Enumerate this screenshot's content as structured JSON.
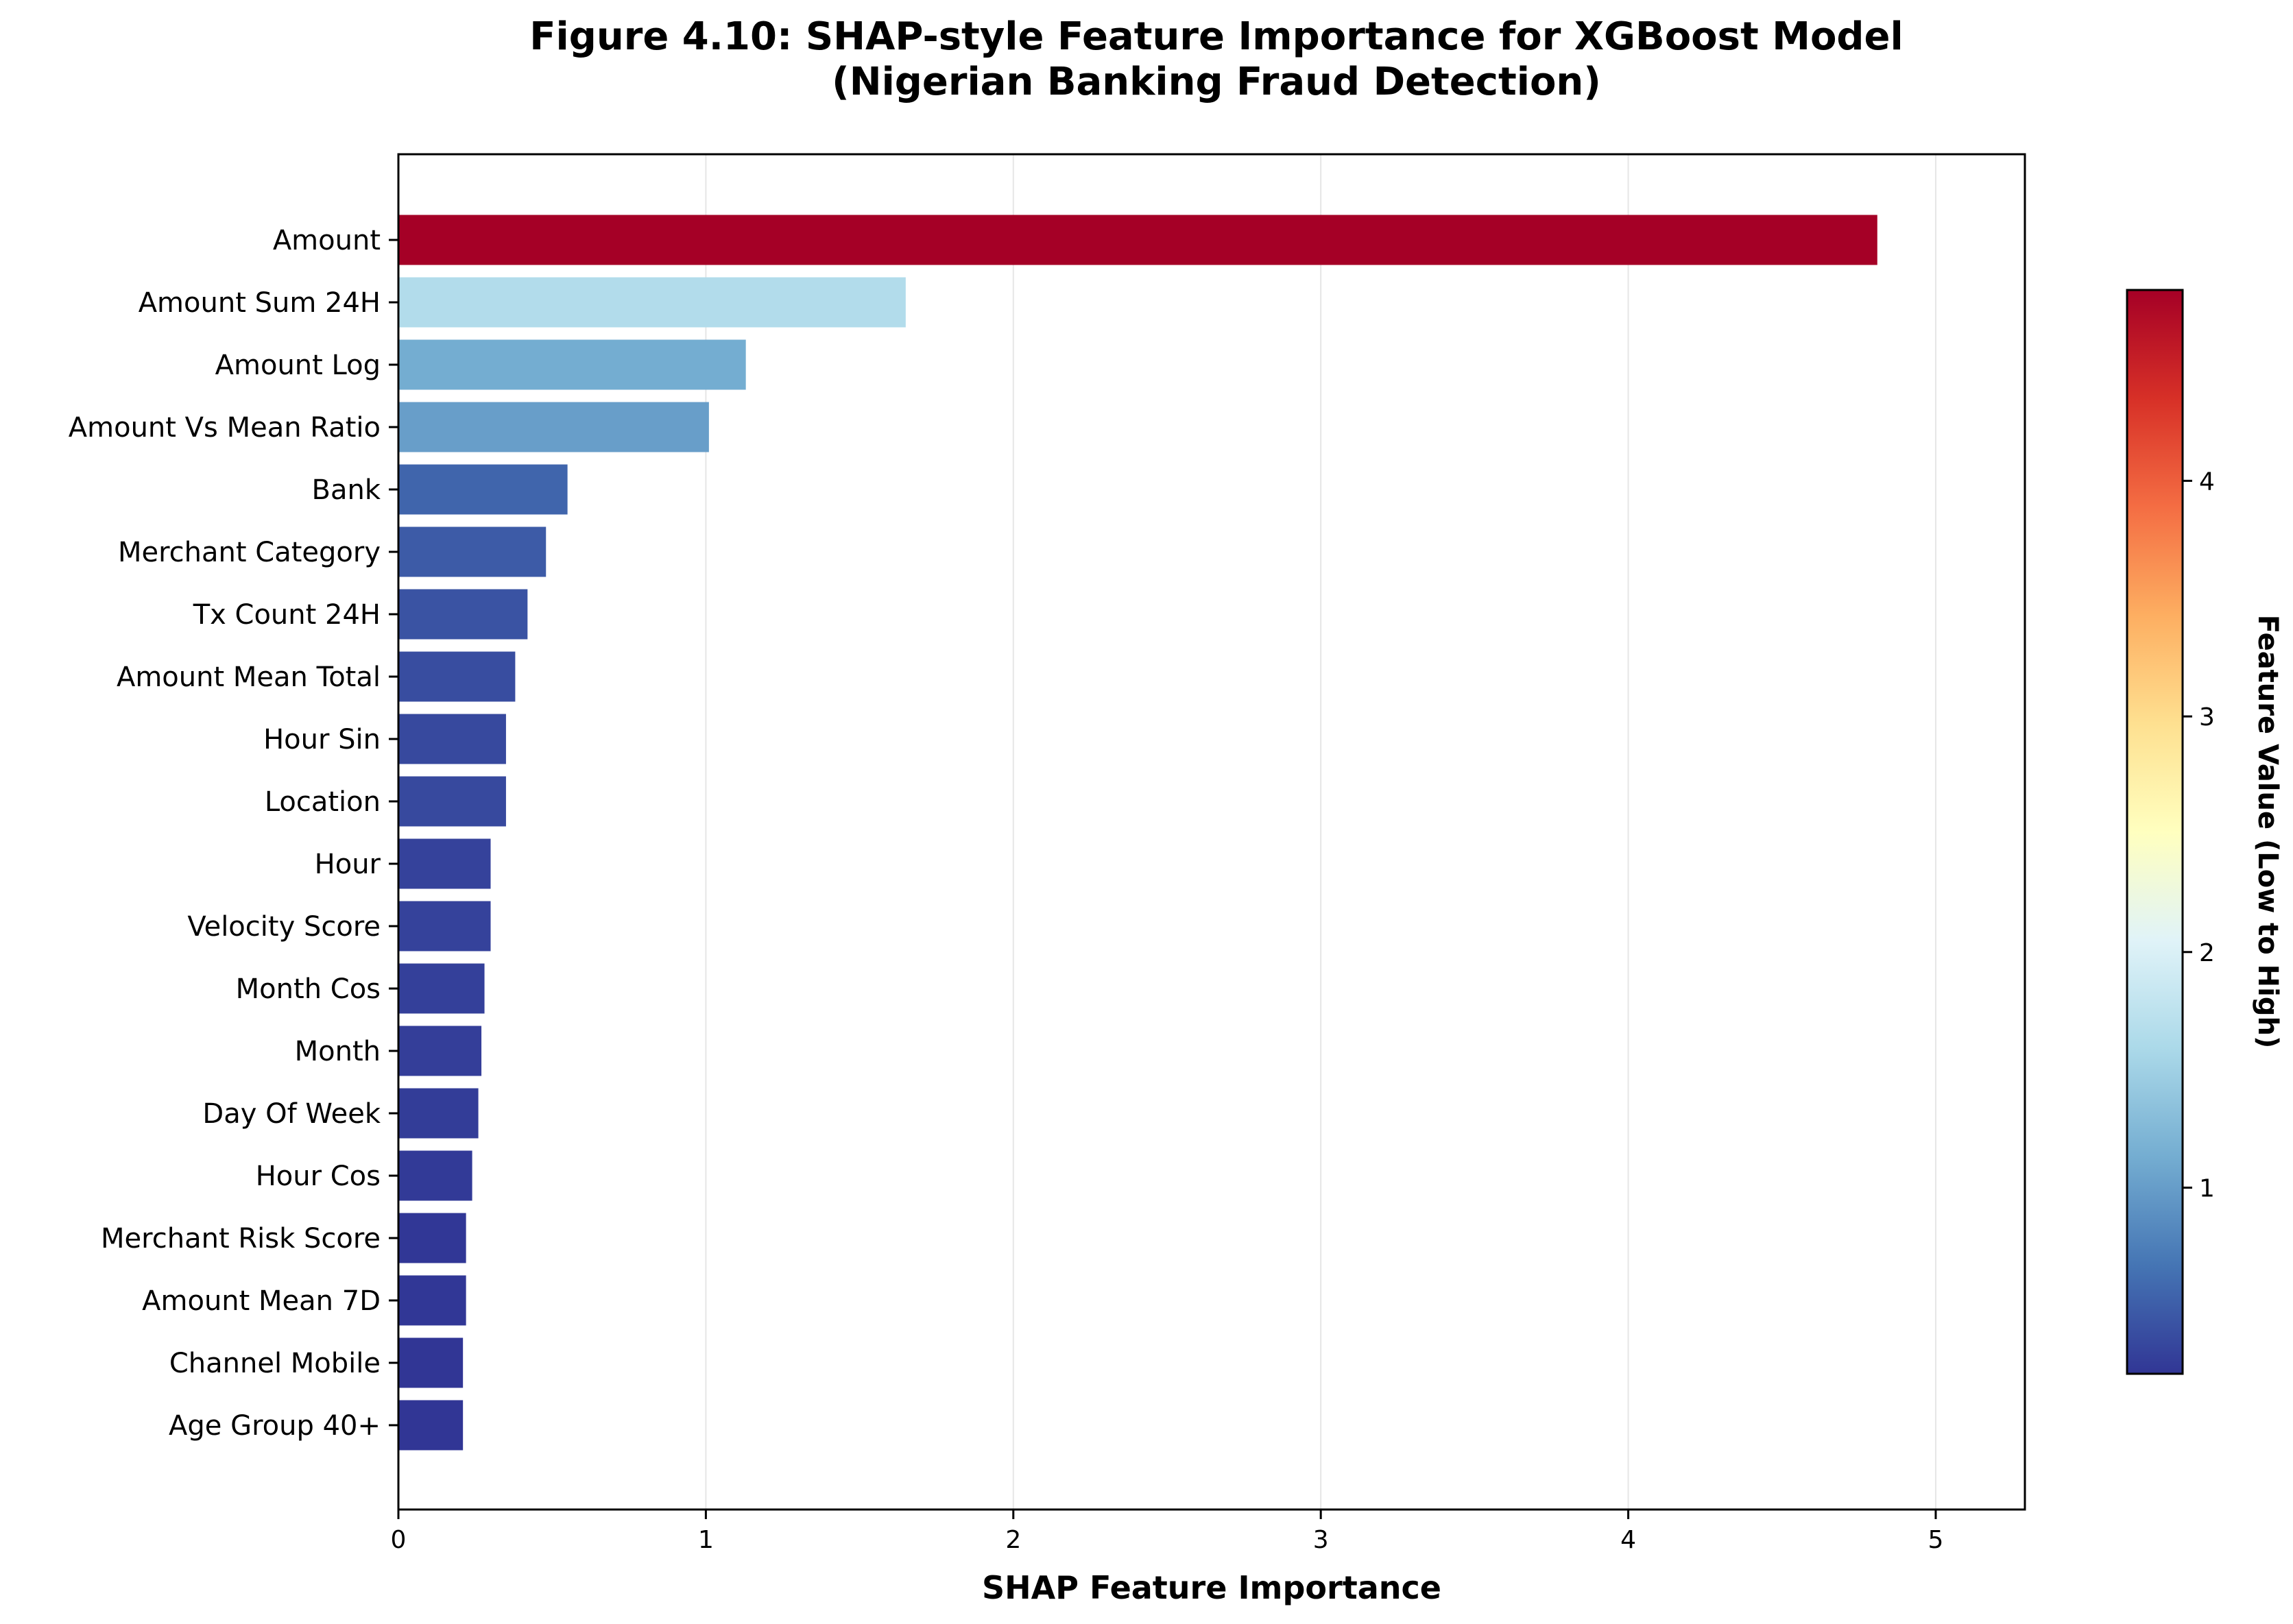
{
  "chart_data": {
    "type": "bar",
    "orientation": "horizontal",
    "title": "Figure 4.10: SHAP-style Feature Importance for XGBoost Model",
    "subtitle": "(Nigerian Banking Fraud Detection)",
    "xlabel": "SHAP Feature Importance",
    "ylabel": "",
    "xlim": [
      0,
      5.29
    ],
    "xticks": [
      "0",
      "1",
      "2",
      "3",
      "4",
      "5"
    ],
    "grid": "vertical",
    "colormap": "RdYlBu_r",
    "colorbar": {
      "label": "Feature Value (Low to High)",
      "range": [
        0.21,
        4.81
      ],
      "ticks": [
        "1",
        "2",
        "3",
        "4"
      ]
    },
    "categories": [
      "Amount",
      "Amount Sum 24H",
      "Amount Log",
      "Amount Vs Mean Ratio",
      "Bank",
      "Merchant Category",
      "Tx Count 24H",
      "Amount Mean Total",
      "Hour Sin",
      "Location",
      "Hour",
      "Velocity Score",
      "Month Cos",
      "Month",
      "Day Of Week",
      "Hour Cos",
      "Merchant Risk Score",
      "Amount Mean 7D",
      "Channel Mobile",
      "Age Group 40+"
    ],
    "values": [
      4.81,
      1.65,
      1.13,
      1.01,
      0.55,
      0.48,
      0.42,
      0.38,
      0.35,
      0.35,
      0.3,
      0.3,
      0.28,
      0.27,
      0.26,
      0.24,
      0.22,
      0.22,
      0.21,
      0.21
    ]
  }
}
